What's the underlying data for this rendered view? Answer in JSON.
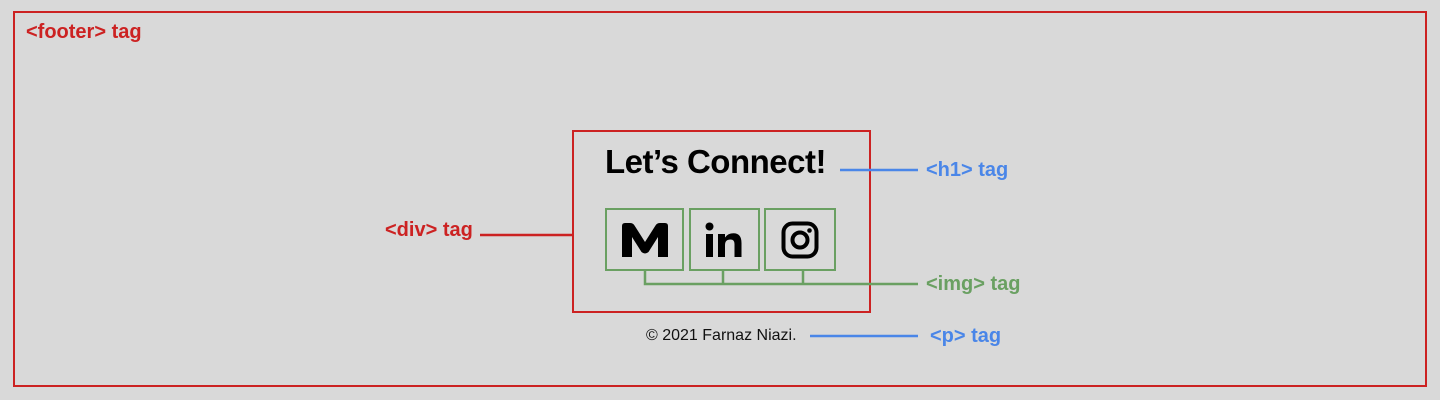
{
  "labels": {
    "footer_tag": "<footer> tag",
    "div_tag": "<div> tag",
    "h1_tag": "<h1> tag",
    "img_tag": "<img> tag",
    "p_tag": "<p> tag"
  },
  "footer": {
    "heading": "Let’s Connect!",
    "icons": [
      "medium-icon",
      "linkedin-icon",
      "instagram-icon"
    ],
    "copyright": "© 2021 Farnaz Niazi."
  },
  "colors": {
    "background": "#d9d9d9",
    "red_annotation": "#cc2222",
    "blue_annotation": "#4a86e8",
    "green_annotation": "#6aa062"
  }
}
